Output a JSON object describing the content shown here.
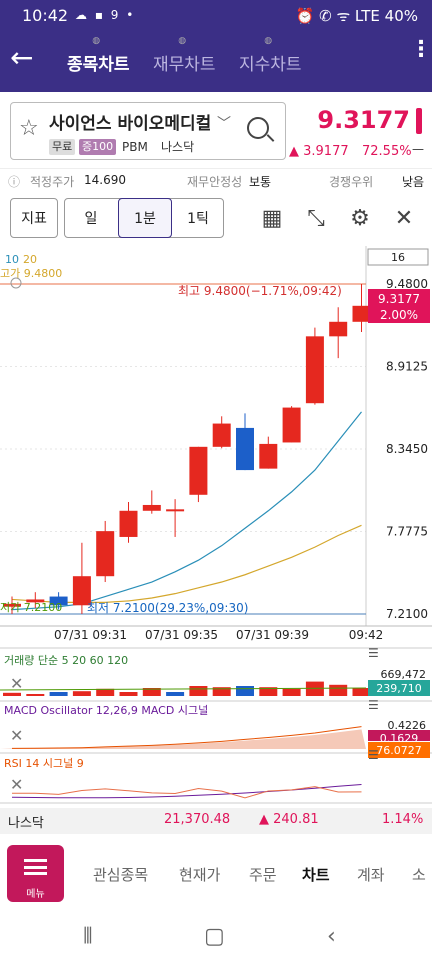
{
  "status": {
    "time": "10:42",
    "battery": "40%",
    "notif_icons": "☁ ▪ 9 •",
    "right_icons": "⏰ ✆ ᯤ LTE"
  },
  "nav": {
    "tabs": [
      "종목차트",
      "재무차트",
      "지수차트"
    ],
    "active_tab": "종목차트"
  },
  "stock": {
    "name": "사이언스 바이오메디컬",
    "badges": [
      "무료",
      "증100",
      "PBM",
      "나스닥"
    ],
    "price": "9.3177",
    "change": "▲ 3.9177",
    "change_pct": "72.55%",
    "change_mark": "—"
  },
  "info": {
    "fair_label": "적정주가",
    "fair_value": "14.690",
    "stability_label": "재무안정성",
    "stability_value": "보통",
    "rank_label": "경쟁우위",
    "rank_value": "낮음"
  },
  "toolbar": {
    "indicator": "지표",
    "day": "일",
    "minute": "1분",
    "tick": "1틱"
  },
  "chart": {
    "ma_labels": [
      "10",
      "20"
    ],
    "count_box": "16",
    "high_left": "고가 9.4800",
    "low_left": "저가 7.2100",
    "high_annot": "최고 9.4800(−1.71%,09:42)",
    "low_annot": "최저 7.2100(29.23%,09:30)",
    "price_tag": "9.3177",
    "pct_tag": "2.00%",
    "x_labels": [
      "07/31 09:31",
      "07/31 09:35",
      "07/31 09:39",
      "09:42"
    ],
    "volume_label": "거래량 단순 5 20 60 120",
    "volume_top": "669,472",
    "volume_tag": "239,710",
    "macd_label": "MACD Oscillator 12,26,9 MACD 시그널",
    "macd_top": "0.4226",
    "macd_tag": "0.1629",
    "rsi_label": "RSI 14 시그널 9",
    "rsi_tag": "76.0727"
  },
  "chart_data": {
    "type": "candlestick",
    "y_ticks": [
      "9.4800",
      "8.9125",
      "8.3450",
      "7.7775",
      "7.2100"
    ],
    "ylim": [
      7.21,
      9.48
    ],
    "candles": [
      {
        "o": 7.26,
        "c": 7.28,
        "h": 7.33,
        "l": 7.21
      },
      {
        "o": 7.29,
        "c": 7.31,
        "h": 7.36,
        "l": 7.25
      },
      {
        "o": 7.33,
        "c": 7.27,
        "h": 7.36,
        "l": 7.24
      },
      {
        "o": 7.27,
        "c": 7.47,
        "h": 7.7,
        "l": 7.21
      },
      {
        "o": 7.47,
        "c": 7.78,
        "h": 7.85,
        "l": 7.43
      },
      {
        "o": 7.74,
        "c": 7.92,
        "h": 7.98,
        "l": 7.7
      },
      {
        "o": 7.92,
        "c": 7.96,
        "h": 8.06,
        "l": 7.9
      },
      {
        "o": 7.93,
        "c": 7.93,
        "h": 8.0,
        "l": 7.74
      },
      {
        "o": 8.03,
        "c": 8.36,
        "h": 8.36,
        "l": 7.98
      },
      {
        "o": 8.36,
        "c": 8.52,
        "h": 8.57,
        "l": 8.35
      },
      {
        "o": 8.49,
        "c": 8.2,
        "h": 8.59,
        "l": 8.2
      },
      {
        "o": 8.21,
        "c": 8.38,
        "h": 8.43,
        "l": 8.21
      },
      {
        "o": 8.39,
        "c": 8.63,
        "h": 8.64,
        "l": 8.39
      },
      {
        "o": 8.66,
        "c": 9.12,
        "h": 9.18,
        "l": 8.65
      },
      {
        "o": 9.12,
        "c": 9.22,
        "h": 9.32,
        "l": 8.97
      },
      {
        "o": 9.22,
        "c": 9.33,
        "h": 9.48,
        "l": 9.15
      }
    ],
    "ma10": [
      7.24,
      7.25,
      7.26,
      7.28,
      7.33,
      7.38,
      7.43,
      7.5,
      7.58,
      7.68,
      7.8,
      7.92,
      8.05,
      8.2,
      8.4,
      8.6
    ],
    "ma20": [
      7.31,
      7.3,
      7.29,
      7.29,
      7.29,
      7.3,
      7.32,
      7.35,
      7.39,
      7.43,
      7.48,
      7.54,
      7.6,
      7.67,
      7.75,
      7.82
    ],
    "volume": [
      0.08,
      0.05,
      0.1,
      0.12,
      0.18,
      0.1,
      0.2,
      0.1,
      0.25,
      0.22,
      0.25,
      0.22,
      0.18,
      0.36,
      0.28,
      0.2
    ],
    "volume_up": [
      true,
      true,
      false,
      true,
      true,
      true,
      true,
      false,
      true,
      true,
      false,
      true,
      true,
      true,
      true,
      true
    ]
  },
  "bottom": {
    "index_name": "나스닥",
    "index_value": "21,370.48",
    "index_change": "▲ 240.81",
    "index_pct": "1.14%"
  },
  "menu": {
    "menu_label": "메뉴",
    "tabs": [
      "관심종목",
      "현재가",
      "주문",
      "차트",
      "계좌",
      "소"
    ]
  }
}
